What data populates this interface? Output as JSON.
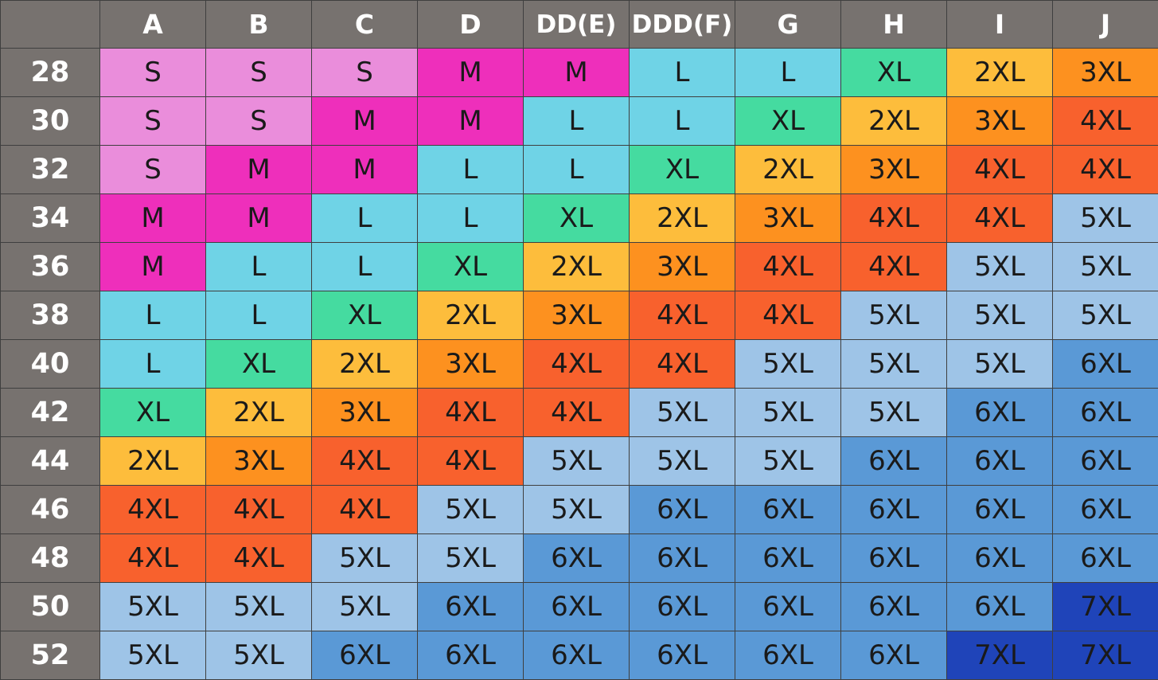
{
  "chart_data": {
    "type": "table",
    "title": "",
    "corner": "",
    "columns": [
      "A",
      "B",
      "C",
      "D",
      "DD(E)",
      "DDD(F)",
      "G",
      "H",
      "I",
      "J"
    ],
    "rows": [
      {
        "band": "28",
        "sizes": [
          "S",
          "S",
          "S",
          "M",
          "M",
          "L",
          "L",
          "XL",
          "2XL",
          "3XL"
        ]
      },
      {
        "band": "30",
        "sizes": [
          "S",
          "S",
          "M",
          "M",
          "L",
          "L",
          "XL",
          "2XL",
          "3XL",
          "4XL"
        ]
      },
      {
        "band": "32",
        "sizes": [
          "S",
          "M",
          "M",
          "L",
          "L",
          "XL",
          "2XL",
          "3XL",
          "4XL",
          "4XL"
        ]
      },
      {
        "band": "34",
        "sizes": [
          "M",
          "M",
          "L",
          "L",
          "XL",
          "2XL",
          "3XL",
          "4XL",
          "4XL",
          "5XL"
        ]
      },
      {
        "band": "36",
        "sizes": [
          "M",
          "L",
          "L",
          "XL",
          "2XL",
          "3XL",
          "4XL",
          "4XL",
          "5XL",
          "5XL"
        ]
      },
      {
        "band": "38",
        "sizes": [
          "L",
          "L",
          "XL",
          "2XL",
          "3XL",
          "4XL",
          "4XL",
          "5XL",
          "5XL",
          "5XL"
        ]
      },
      {
        "band": "40",
        "sizes": [
          "L",
          "XL",
          "2XL",
          "3XL",
          "4XL",
          "4XL",
          "5XL",
          "5XL",
          "5XL",
          "6XL"
        ]
      },
      {
        "band": "42",
        "sizes": [
          "XL",
          "2XL",
          "3XL",
          "4XL",
          "4XL",
          "5XL",
          "5XL",
          "5XL",
          "6XL",
          "6XL"
        ]
      },
      {
        "band": "44",
        "sizes": [
          "2XL",
          "3XL",
          "4XL",
          "4XL",
          "5XL",
          "5XL",
          "5XL",
          "6XL",
          "6XL",
          "6XL"
        ]
      },
      {
        "band": "46",
        "sizes": [
          "4XL",
          "4XL",
          "4XL",
          "5XL",
          "5XL",
          "6XL",
          "6XL",
          "6XL",
          "6XL",
          "6XL"
        ]
      },
      {
        "band": "48",
        "sizes": [
          "4XL",
          "4XL",
          "5XL",
          "5XL",
          "6XL",
          "6XL",
          "6XL",
          "6XL",
          "6XL",
          "6XL"
        ]
      },
      {
        "band": "50",
        "sizes": [
          "5XL",
          "5XL",
          "5XL",
          "6XL",
          "6XL",
          "6XL",
          "6XL",
          "6XL",
          "6XL",
          "7XL"
        ]
      },
      {
        "band": "52",
        "sizes": [
          "5XL",
          "5XL",
          "6XL",
          "6XL",
          "6XL",
          "6XL",
          "6XL",
          "6XL",
          "7XL",
          "7XL"
        ]
      }
    ],
    "size_colors": {
      "S": "#ea8ddb",
      "M": "#ee2fbb",
      "L": "#6fd3e6",
      "XL": "#45dba0",
      "2XL": "#fdbd3c",
      "3XL": "#fd911f",
      "4XL": "#f8612d",
      "5XL": "#9ec4e7",
      "6XL": "#5a99d6",
      "7XL": "#1f44b9"
    },
    "header_color": "#77726f",
    "header_text_color": "#ffffff"
  }
}
